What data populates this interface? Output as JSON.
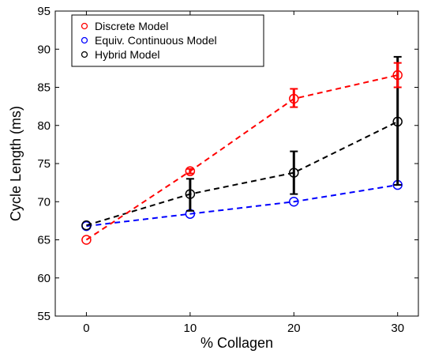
{
  "chart_data": {
    "type": "line",
    "title": "",
    "xlabel": "% Collagen",
    "ylabel": "Cycle Length (ms)",
    "xlim": [
      -3,
      32
    ],
    "ylim": [
      55,
      95
    ],
    "x_ticks": [
      0,
      10,
      20,
      30
    ],
    "y_ticks": [
      55,
      60,
      65,
      70,
      75,
      80,
      85,
      90,
      95
    ],
    "grid": false,
    "legend_position": "top-left",
    "series": [
      {
        "name": "Discrete Model",
        "color": "#ff0000",
        "x": [
          0,
          10,
          20,
          30
        ],
        "y": [
          65.0,
          74.0,
          83.5,
          86.6
        ],
        "err_low": [
          0,
          0.3,
          1.1,
          1.6
        ],
        "err_high": [
          0,
          0.3,
          1.3,
          1.6
        ]
      },
      {
        "name": "Equiv. Continuous Model",
        "color": "#0000ff",
        "x": [
          0,
          10,
          20,
          30
        ],
        "y": [
          66.8,
          68.4,
          70.0,
          72.2
        ],
        "err_low": [
          0,
          0,
          0,
          0
        ],
        "err_high": [
          0,
          0,
          0,
          0
        ]
      },
      {
        "name": "Hybrid Model",
        "color": "#000000",
        "x": [
          0,
          10,
          20,
          30
        ],
        "y": [
          66.9,
          71.0,
          73.8,
          80.5
        ],
        "err_low": [
          0,
          2.2,
          2.8,
          8.3
        ],
        "err_high": [
          0,
          2.0,
          2.8,
          8.5
        ]
      }
    ]
  }
}
